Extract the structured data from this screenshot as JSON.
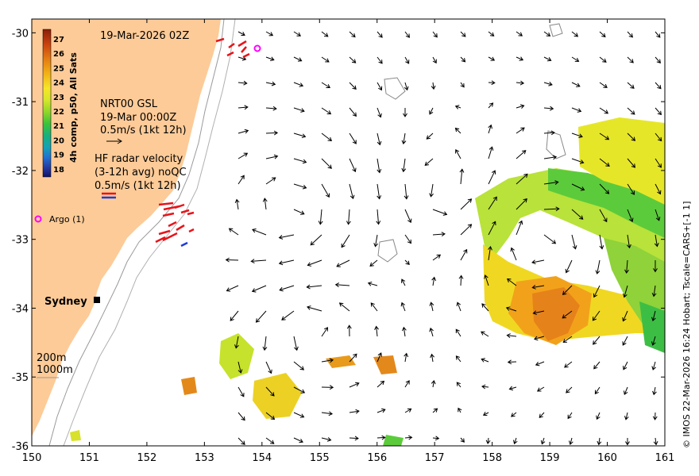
{
  "map": {
    "title": "19-Mar-2026 02Z",
    "credit": "© IMOS 22-Mar-2026 16:24 Hobart; Tscale=CARS+[-1 1]",
    "x_ticks": [
      "150",
      "151",
      "152",
      "153",
      "154",
      "155",
      "156",
      "157",
      "158",
      "159",
      "160",
      "161"
    ],
    "y_ticks": [
      "-30",
      "-31",
      "-32",
      "-33",
      "-34",
      "-35",
      "-36"
    ],
    "lon_range": [
      150,
      161
    ],
    "lat_range": [
      -36,
      -29.8
    ]
  },
  "colorbar": {
    "label": "4h comp, p50, All Sats",
    "ticks": [
      "27",
      "26",
      "25",
      "24",
      "23",
      "22",
      "21",
      "20",
      "19",
      "18"
    ],
    "colors": [
      "#8a1d0a",
      "#c8410f",
      "#e37b12",
      "#f2b216",
      "#f6e628",
      "#d4e62a",
      "#8fd62a",
      "#3cc33a",
      "#17b07e",
      "#13a2b7",
      "#1f6fd2",
      "#23389e",
      "#10136a"
    ]
  },
  "legend": {
    "gsl_line1": "NRT00 GSL",
    "gsl_line2": "19-Mar 00:00Z",
    "gsl_line3": "0.5m/s (1kt 12h)",
    "hf_line1": "HF radar velocity",
    "hf_line2": "(3-12h avg) noQC",
    "hf_line3": "0.5m/s (1kt 12h)",
    "argo": "Argo (1)",
    "city": "Sydney",
    "depth1": "200m",
    "depth2": "1000m"
  },
  "colors": {
    "land": "#fdcb98",
    "argo": "#ff00ff",
    "hf_red": "#e8141a",
    "hf_blue": "#1f3cd8",
    "arrow": "#000000"
  }
}
